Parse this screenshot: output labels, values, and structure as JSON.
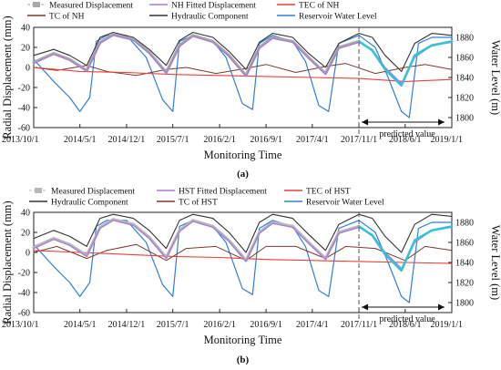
{
  "chart_data": [
    {
      "type": "line",
      "panel_label": "(a)",
      "xlabel": "Monitoring Time",
      "ylabel": "Radial Displacement (mm)",
      "y2label": "Water Level (m)",
      "ylim": [
        -60,
        40
      ],
      "yticks": [
        "40",
        "20",
        "0",
        "-20",
        "-40",
        "-60"
      ],
      "y2lim": [
        1790,
        1890
      ],
      "y2ticks": [
        "1880",
        "1860",
        "1840",
        "1820",
        "1800"
      ],
      "x_tick_labels": [
        "2013/10/1",
        "2014/5/1",
        "2014/12/1",
        "2015/7/1",
        "2016/2/1",
        "2016/9/1",
        "2017/4/1",
        "2017/11/1",
        "2018/6/1",
        "2019/1/1"
      ],
      "annotation": "predicted value",
      "prediction_start": "2017/11/1",
      "legend": [
        {
          "name": "Measured Displacement",
          "color": "#a8a8a8"
        },
        {
          "name": "NH Fitted Displacement",
          "color": "#a77bd6"
        },
        {
          "name": "TEC of NH",
          "color": "#e8403a"
        },
        {
          "name": "TC of NH",
          "color": "#7a3a2e"
        },
        {
          "name": "Hydraulic Component",
          "color": "#333333"
        },
        {
          "name": "Reservoir Water Level",
          "color": "#2f7fd8"
        }
      ],
      "series": {
        "measured_displacement": {
          "x": [
            "2013/10/1",
            "2014/1/1",
            "2014/3/15",
            "2014/6/1",
            "2014/8/1",
            "2014/10/1",
            "2015/1/1",
            "2015/3/15",
            "2015/6/1",
            "2015/8/1",
            "2015/10/1",
            "2016/1/1",
            "2016/3/15",
            "2016/6/1",
            "2016/8/1",
            "2016/10/1",
            "2017/1/1",
            "2017/3/15",
            "2017/6/1",
            "2017/8/1",
            "2017/11/1"
          ],
          "y": [
            5,
            14,
            8,
            -3,
            25,
            33,
            28,
            15,
            -5,
            22,
            32,
            26,
            12,
            -8,
            20,
            30,
            26,
            10,
            -6,
            20,
            26
          ]
        },
        "nh_fitted_displacement": {
          "x": [
            "2013/10/1",
            "2014/1/1",
            "2014/3/15",
            "2014/6/1",
            "2014/8/1",
            "2014/10/1",
            "2015/1/1",
            "2015/3/15",
            "2015/6/1",
            "2015/8/1",
            "2015/10/1",
            "2016/1/1",
            "2016/3/15",
            "2016/6/1",
            "2016/8/1",
            "2016/10/1",
            "2017/1/1",
            "2017/3/15",
            "2017/6/1",
            "2017/8/1",
            "2017/11/1",
            "2018/1/1",
            "2018/3/1",
            "2018/5/15",
            "2018/7/15",
            "2018/10/1",
            "2019/1/1"
          ],
          "y": [
            4,
            13,
            7,
            -4,
            24,
            32,
            27,
            14,
            -6,
            21,
            31,
            25,
            11,
            -9,
            19,
            29,
            25,
            9,
            -7,
            19,
            25,
            18,
            0,
            -16,
            10,
            22,
            25
          ]
        },
        "predicted_displacement": {
          "x": [
            "2017/11/1",
            "2018/1/1",
            "2018/3/1",
            "2018/5/15",
            "2018/7/15",
            "2018/10/1",
            "2019/1/1"
          ],
          "y": [
            26,
            17,
            -2,
            -18,
            12,
            22,
            26
          ]
        },
        "tec": {
          "x": [
            "2013/10/1",
            "2014/5/1",
            "2014/12/1",
            "2015/7/1",
            "2016/2/1",
            "2016/9/1",
            "2017/4/1",
            "2017/11/1",
            "2018/6/1",
            "2019/1/1"
          ],
          "y": [
            0,
            -4,
            -5,
            -7,
            -8,
            -9,
            -10,
            -11,
            -14,
            -12
          ]
        },
        "tc": {
          "x": [
            "2013/10/1",
            "2014/1/15",
            "2014/6/1",
            "2014/9/1",
            "2015/1/15",
            "2015/6/1",
            "2015/9/1",
            "2016/1/15",
            "2016/6/1",
            "2016/9/1",
            "2017/1/15",
            "2017/6/1",
            "2017/9/1",
            "2018/1/15",
            "2018/6/1",
            "2018/9/1",
            "2019/1/1"
          ],
          "y": [
            0,
            -3,
            2,
            -4,
            -8,
            -2,
            0,
            -6,
            -1,
            3,
            -5,
            1,
            4,
            -6,
            0,
            3,
            -2
          ]
        },
        "hydraulic_component": {
          "x": [
            "2013/10/1",
            "2014/1/1",
            "2014/3/15",
            "2014/6/1",
            "2014/8/1",
            "2014/10/1",
            "2015/1/1",
            "2015/3/15",
            "2015/6/1",
            "2015/8/1",
            "2015/10/1",
            "2016/1/1",
            "2016/3/15",
            "2016/6/1",
            "2016/8/1",
            "2016/10/1",
            "2017/1/1",
            "2017/3/15",
            "2017/6/1",
            "2017/8/1",
            "2017/11/1",
            "2018/1/1",
            "2018/3/1",
            "2018/5/15",
            "2018/7/15",
            "2018/10/1",
            "2019/1/1"
          ],
          "y": [
            12,
            18,
            12,
            2,
            30,
            35,
            30,
            18,
            2,
            27,
            35,
            30,
            16,
            -2,
            25,
            34,
            30,
            14,
            0,
            24,
            34,
            30,
            12,
            -4,
            24,
            34,
            32
          ]
        },
        "reservoir_water_level": {
          "x": [
            "2013/10/1",
            "2014/1/1",
            "2014/3/15",
            "2014/5/1",
            "2014/6/15",
            "2014/7/15",
            "2014/9/1",
            "2014/12/1",
            "2015/3/1",
            "2015/5/15",
            "2015/7/1",
            "2015/8/1",
            "2015/10/1",
            "2016/1/1",
            "2016/3/1",
            "2016/5/15",
            "2016/7/1",
            "2016/8/1",
            "2016/10/1",
            "2017/1/1",
            "2017/3/1",
            "2017/5/1",
            "2017/6/15",
            "2017/8/1",
            "2017/11/1",
            "2018/1/15",
            "2018/3/15",
            "2018/5/15",
            "2018/6/20",
            "2018/8/1",
            "2018/10/1",
            "2019/1/1"
          ],
          "y": [
            1858,
            1836,
            1820,
            1806,
            1820,
            1876,
            1882,
            1882,
            1860,
            1818,
            1806,
            1876,
            1882,
            1876,
            1860,
            1814,
            1808,
            1874,
            1882,
            1876,
            1856,
            1812,
            1806,
            1874,
            1882,
            1870,
            1840,
            1806,
            1800,
            1874,
            1880,
            1880
          ]
        }
      }
    },
    {
      "type": "line",
      "panel_label": "(b)",
      "xlabel": "Monitoring Time",
      "ylabel": "Radial Displacement (mm)",
      "y2label": "Water Level (m)",
      "ylim": [
        -60,
        40
      ],
      "yticks": [
        "40",
        "20",
        "0",
        "-20",
        "-40",
        "-60"
      ],
      "y2lim": [
        1790,
        1890
      ],
      "y2ticks": [
        "1880",
        "1860",
        "1840",
        "1820",
        "1800"
      ],
      "x_tick_labels": [
        "2013/10/1",
        "2014/5/1",
        "2014/12/1",
        "2015/7/1",
        "2016/2/1",
        "2016/9/1",
        "2017/4/1",
        "2017/11/1",
        "2018/6/1",
        "2019/1/1"
      ],
      "annotation": "predicted value",
      "prediction_start": "2017/11/1",
      "legend": [
        {
          "name": "Measured Displacement",
          "color": "#b8b8b8"
        },
        {
          "name": "HST Fitted Displacement",
          "color": "#a77bd6"
        },
        {
          "name": "TEC of HST",
          "color": "#e8403a"
        },
        {
          "name": "Hydraulic Component",
          "color": "#333333"
        },
        {
          "name": "TC of HST",
          "color": "#7a3a2e"
        },
        {
          "name": "Reservoir Water Level",
          "color": "#2f7fd8"
        }
      ],
      "series": {
        "measured_displacement": {
          "x": [
            "2013/10/1",
            "2014/1/1",
            "2014/3/15",
            "2014/6/1",
            "2014/8/1",
            "2014/10/1",
            "2015/1/1",
            "2015/3/15",
            "2015/6/1",
            "2015/8/1",
            "2015/10/1",
            "2016/1/1",
            "2016/3/15",
            "2016/6/1",
            "2016/8/1",
            "2016/10/1",
            "2017/1/1",
            "2017/3/15",
            "2017/6/1",
            "2017/8/1",
            "2017/11/1"
          ],
          "y": [
            5,
            14,
            8,
            -3,
            25,
            33,
            28,
            15,
            -5,
            22,
            32,
            26,
            12,
            -8,
            20,
            30,
            26,
            10,
            -6,
            20,
            26
          ]
        },
        "hst_fitted_displacement": {
          "x": [
            "2013/10/1",
            "2014/1/1",
            "2014/3/15",
            "2014/6/1",
            "2014/8/1",
            "2014/10/1",
            "2015/1/1",
            "2015/3/15",
            "2015/6/1",
            "2015/8/1",
            "2015/10/1",
            "2016/1/1",
            "2016/3/15",
            "2016/6/1",
            "2016/8/1",
            "2016/10/1",
            "2017/1/1",
            "2017/3/15",
            "2017/6/1",
            "2017/8/1",
            "2017/11/1",
            "2018/1/1",
            "2018/3/1",
            "2018/5/15",
            "2018/7/15",
            "2018/10/1",
            "2019/1/1"
          ],
          "y": [
            4,
            13,
            7,
            -4,
            24,
            32,
            27,
            14,
            -6,
            21,
            31,
            25,
            11,
            -9,
            19,
            29,
            25,
            9,
            -7,
            19,
            25,
            18,
            0,
            -16,
            10,
            22,
            25
          ]
        },
        "predicted_displacement": {
          "x": [
            "2017/11/1",
            "2018/1/1",
            "2018/3/1",
            "2018/5/15",
            "2018/7/15",
            "2018/10/1",
            "2019/1/1"
          ],
          "y": [
            26,
            17,
            -2,
            -18,
            12,
            22,
            26
          ]
        },
        "tec": {
          "x": [
            "2013/10/1",
            "2014/5/1",
            "2014/12/1",
            "2015/7/1",
            "2016/2/1",
            "2016/9/1",
            "2017/4/1",
            "2017/11/1",
            "2018/6/1",
            "2019/1/1"
          ],
          "y": [
            2,
            0,
            -2,
            -4,
            -5,
            -7,
            -8,
            -9,
            -10,
            -11
          ]
        },
        "tc": {
          "x": [
            "2013/10/1",
            "2014/1/15",
            "2014/6/1",
            "2014/9/1",
            "2015/1/15",
            "2015/6/1",
            "2015/9/1",
            "2016/1/15",
            "2016/6/1",
            "2016/9/1",
            "2017/1/15",
            "2017/6/1",
            "2017/9/1",
            "2018/1/15",
            "2018/6/1",
            "2018/9/1",
            "2019/1/1"
          ],
          "y": [
            0,
            6,
            -6,
            2,
            8,
            -8,
            4,
            6,
            -8,
            6,
            6,
            -6,
            6,
            4,
            -8,
            6,
            2
          ]
        },
        "hydraulic_component": {
          "x": [
            "2013/10/1",
            "2014/1/1",
            "2014/3/15",
            "2014/6/1",
            "2014/8/1",
            "2014/10/1",
            "2015/1/1",
            "2015/3/15",
            "2015/6/1",
            "2015/8/1",
            "2015/10/1",
            "2016/1/1",
            "2016/3/15",
            "2016/6/1",
            "2016/8/1",
            "2016/10/1",
            "2017/1/1",
            "2017/3/15",
            "2017/6/1",
            "2017/8/1",
            "2017/11/1",
            "2018/1/1",
            "2018/3/1",
            "2018/5/15",
            "2018/7/15",
            "2018/10/1",
            "2019/1/1"
          ],
          "y": [
            14,
            22,
            16,
            6,
            34,
            38,
            34,
            22,
            4,
            32,
            38,
            34,
            20,
            0,
            30,
            38,
            34,
            18,
            2,
            28,
            38,
            34,
            16,
            0,
            28,
            38,
            36
          ]
        },
        "reservoir_water_level": {
          "x": [
            "2013/10/1",
            "2014/1/1",
            "2014/3/15",
            "2014/5/1",
            "2014/6/15",
            "2014/7/15",
            "2014/9/1",
            "2014/12/1",
            "2015/3/1",
            "2015/5/15",
            "2015/7/1",
            "2015/8/1",
            "2015/10/1",
            "2016/1/1",
            "2016/3/1",
            "2016/5/15",
            "2016/7/1",
            "2016/8/1",
            "2016/10/1",
            "2017/1/1",
            "2017/3/1",
            "2017/5/1",
            "2017/6/15",
            "2017/8/1",
            "2017/11/1",
            "2018/1/15",
            "2018/3/15",
            "2018/5/15",
            "2018/6/20",
            "2018/8/1",
            "2018/10/1",
            "2019/1/1"
          ],
          "y": [
            1858,
            1836,
            1820,
            1806,
            1820,
            1876,
            1882,
            1882,
            1860,
            1818,
            1806,
            1876,
            1882,
            1876,
            1860,
            1814,
            1808,
            1874,
            1882,
            1876,
            1856,
            1812,
            1806,
            1874,
            1882,
            1870,
            1840,
            1806,
            1800,
            1874,
            1880,
            1880
          ]
        }
      }
    }
  ]
}
